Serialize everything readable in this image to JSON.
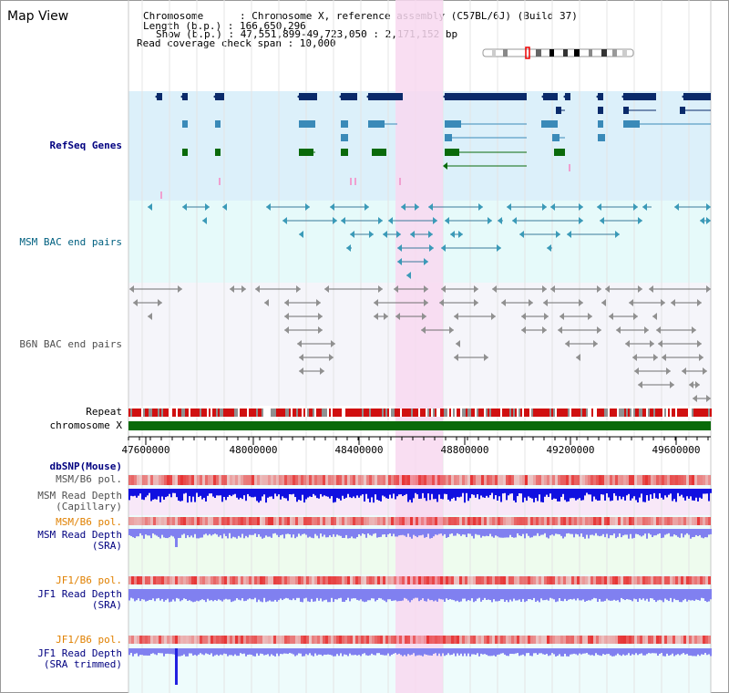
{
  "header": {
    "title": "Map View",
    "info_lines": [
      "Chromosome      : Chromosome X, reference assembly (C57BL/6J) (Build 37)",
      "Length (b.p.) : 166,650,296",
      "Show (b.p.) : 47,551,899-49,723,050 : 2,171,152 bp",
      "Read coverage check span : 10,000"
    ]
  },
  "tracks": {
    "refseq": "RefSeq Genes",
    "msm_bac": "MSM BAC end pairs",
    "b6n_bac": "B6N BAC end pairs",
    "repeat": "Repeat",
    "chromosome": "chromosome X",
    "dbsnp": "dbSNP(Mouse)",
    "msm_b6_pol_1": "MSM/B6 pol.",
    "msm_depth_cap": "MSM Read Depth\n(Capillary)",
    "msm_b6_pol_2": "MSM/B6 pol.",
    "msm_depth_sra": "MSM Read Depth\n(SRA)",
    "jf1_b6_pol_1": "JF1/B6 pol.",
    "jf1_depth_sra": "JF1 Read Depth\n(SRA)",
    "jf1_b6_pol_2": "JF1/B6 pol.",
    "jf1_depth_trim": "JF1 Read Depth\n(SRA trimmed)"
  },
  "ruler": {
    "ticks": [
      "47600000",
      "48000000",
      "48400000",
      "48800000",
      "49200000",
      "49600000"
    ]
  },
  "colors": {
    "refseq_bg": "#dcf0fa",
    "msm_bac_bg": "#e6fafa",
    "b6n_bac_bg": "#f5f5fa",
    "highlight": "#f8d8f0",
    "gene_dark": "#0a2a6a",
    "gene_mid": "#3a8ab8",
    "gene_green": "#0a6a0a",
    "chromosome": "#0a6a0a",
    "depth_blue": "#1010e0",
    "depth_light": "#8080f0",
    "label_blue": "#000080",
    "label_orange": "#e08000",
    "label_teal": "#006080",
    "label_gray": "#505050"
  }
}
